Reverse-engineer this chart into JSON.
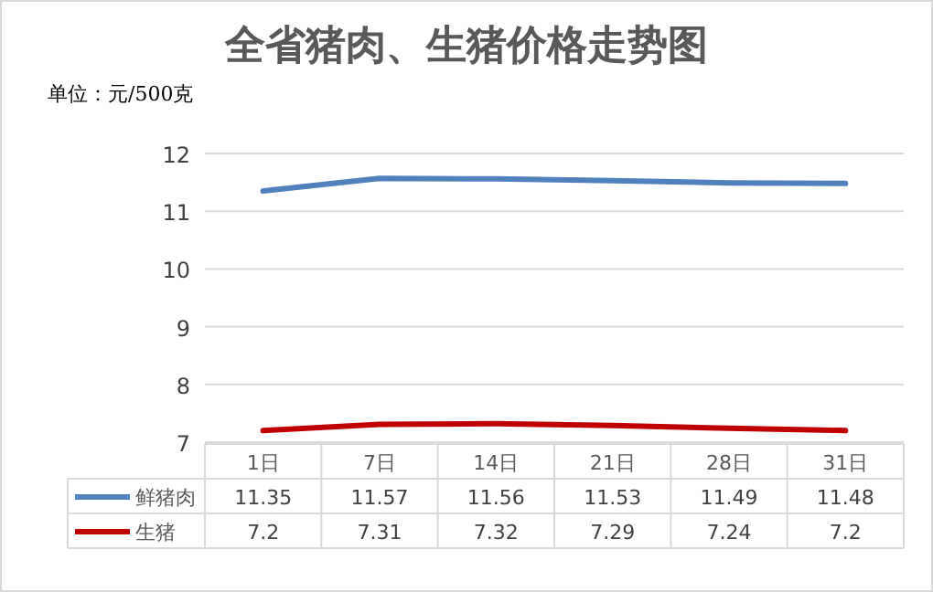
{
  "chart_data": {
    "type": "line",
    "title": "全省猪肉、生猪价格走势图",
    "ylabel": "单位：元/500克",
    "categories": [
      "1日",
      "7日",
      "14日",
      "21日",
      "28日",
      "31日"
    ],
    "series": [
      {
        "name": "鲜猪肉",
        "color": "#4f81bd",
        "values": [
          11.35,
          11.57,
          11.56,
          11.53,
          11.49,
          11.48
        ]
      },
      {
        "name": "生猪",
        "color": "#c00000",
        "values": [
          7.2,
          7.31,
          7.32,
          7.29,
          7.24,
          7.2
        ]
      }
    ],
    "ylim": [
      7,
      12
    ],
    "yticks": [
      7,
      8,
      9,
      10,
      11,
      12
    ],
    "grid": "y",
    "data_labels": true,
    "legend": "bottom",
    "marker": "none",
    "line_style": "solid"
  }
}
